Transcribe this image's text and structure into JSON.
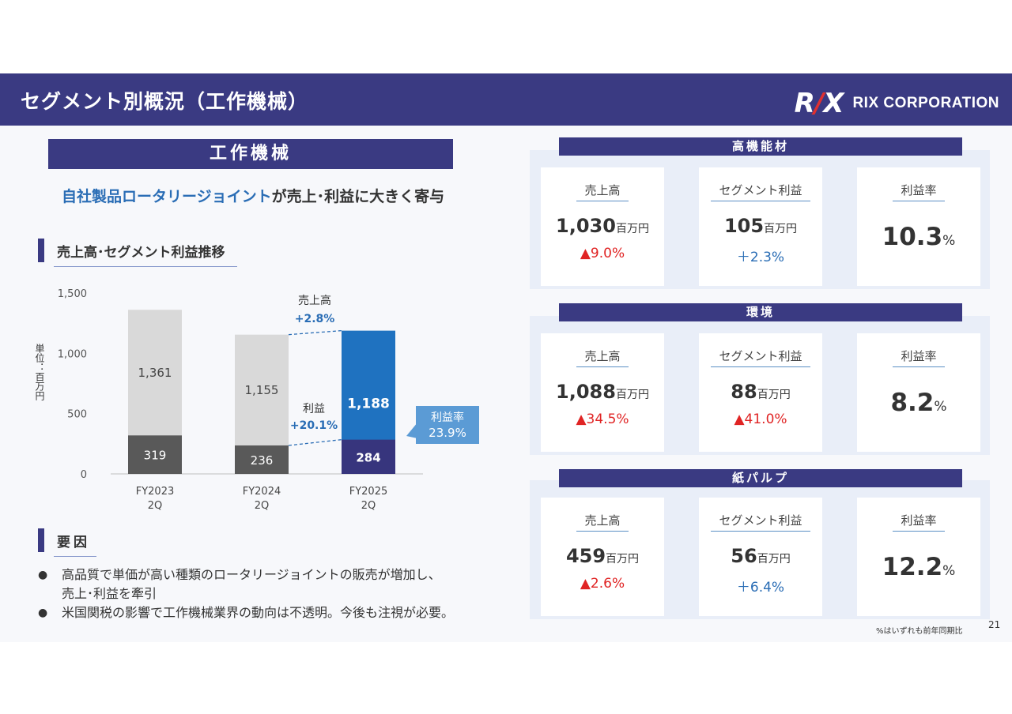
{
  "header": {
    "title": "セグメント別概況（工作機械）",
    "logo_mark_r": "R",
    "logo_mark_slash": "/",
    "logo_mark_x": "X",
    "logo_text": "RIX CORPORATION"
  },
  "left": {
    "banner": "工作機械",
    "headline_blue": "自社製品ロータリージョイント",
    "headline_rest": "が売上･利益に大きく寄与",
    "trend_title": "売上高･セグメント利益推移",
    "factors_title": "要因",
    "bullets": [
      "高品質で単価が高い種類のロータリージョイントの販売が増加し、",
      "売上･利益を牽引",
      "米国関税の影響で工作機械業界の動向は不透明。今後も注視が必要。"
    ]
  },
  "chart_data": {
    "type": "bar",
    "stacked": true,
    "categories": [
      "FY2023\n2Q",
      "FY2024\n2Q",
      "FY2025\n2Q"
    ],
    "category_lines": [
      [
        "FY2023",
        "2Q"
      ],
      [
        "FY2024",
        "2Q"
      ],
      [
        "FY2025",
        "2Q"
      ]
    ],
    "sales": [
      1361,
      1155,
      1188
    ],
    "segment_profit": [
      319,
      236,
      284
    ],
    "ylim": [
      0,
      1500
    ],
    "yticks": [
      "0",
      "500",
      "1,000",
      "1,500"
    ],
    "ylabel": "単位：百万円",
    "sales_labels": [
      "1,361",
      "1,155",
      "1,188"
    ],
    "profit_labels": [
      "319",
      "236",
      "284"
    ],
    "annotations": {
      "sales_change_label": "売上高",
      "sales_change": "+2.8%",
      "profit_change_label": "利益",
      "profit_change": "+20.1%",
      "margin_label": "利益率",
      "margin_value": "23.9%"
    },
    "colors": {
      "sales_prev": "#d9d9d9",
      "profit_prev": "#595959",
      "sales_curr": "#1f72c0",
      "profit_curr": "#37357d",
      "accent": "#5b9bd5"
    }
  },
  "segments": [
    {
      "name": "高機能材",
      "sales_label": "売上高",
      "sales_value": "1,030",
      "sales_unit": "百万円",
      "sales_change": "▲9.0%",
      "sales_change_type": "neg",
      "profit_label": "セグメント利益",
      "profit_value": "105",
      "profit_unit": "百万円",
      "profit_change": "＋2.3%",
      "profit_change_type": "pos",
      "margin_label": "利益率",
      "margin_value": "10.3",
      "margin_unit": "%"
    },
    {
      "name": "環境",
      "sales_label": "売上高",
      "sales_value": "1,088",
      "sales_unit": "百万円",
      "sales_change": "▲34.5%",
      "sales_change_type": "neg",
      "profit_label": "セグメント利益",
      "profit_value": "88",
      "profit_unit": "百万円",
      "profit_change": "▲41.0%",
      "profit_change_type": "neg",
      "margin_label": "利益率",
      "margin_value": "8.2",
      "margin_unit": "%"
    },
    {
      "name": "紙パルプ",
      "sales_label": "売上高",
      "sales_value": "459",
      "sales_unit": "百万円",
      "sales_change": "▲2.6%",
      "sales_change_type": "neg",
      "profit_label": "セグメント利益",
      "profit_value": "56",
      "profit_unit": "百万円",
      "profit_change": "＋6.4%",
      "profit_change_type": "pos",
      "margin_label": "利益率",
      "margin_value": "12.2",
      "margin_unit": "%"
    }
  ],
  "footnote": "%はいずれも前年同期比",
  "page_number": "21"
}
